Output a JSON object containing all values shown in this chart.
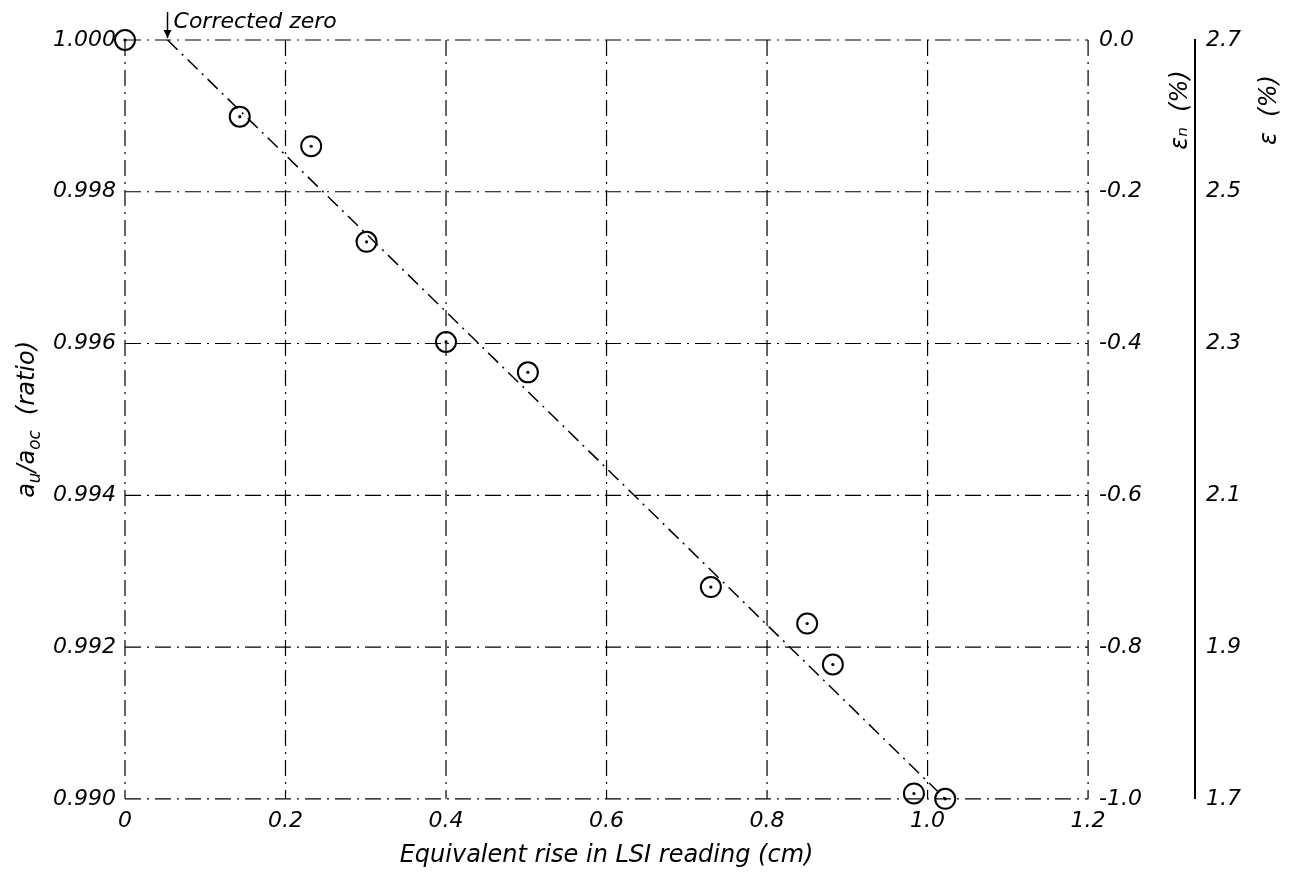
{
  "chart_data": {
    "type": "scatter",
    "xlabel": "Equivalent rise in LSI reading (cm)",
    "ylabel": "a$_{u}$/a$_{oc}$  (ratio)",
    "y2label": "εₙ  (%)",
    "y3label": "ε  (%)",
    "series": [
      {
        "color": "#000000",
        "marker": "circle",
        "x": [
          0,
          0.143,
          0.232,
          0.301,
          0.4,
          0.502,
          0.73,
          0.85,
          0.882,
          0.983,
          1.022
        ],
        "values": [
          1.0,
          0.99899,
          0.9986,
          0.99734,
          0.99602,
          0.99562,
          0.99279,
          0.99231,
          0.99177,
          0.99007,
          0.99
        ]
      },
      {
        "type": "line",
        "color": "#000000",
        "marker": "none",
        "line_style": "dashed",
        "x": [
          0.053,
          1.022
        ],
        "values": [
          1.0,
          0.99
        ]
      }
    ],
    "xlim": [
      0,
      1.2
    ],
    "xticks": [
      0,
      0.2,
      0.4,
      0.6,
      0.8,
      {
        "value": 1,
        "label": "1.0"
      },
      1.2
    ],
    "ylim": [
      0.99,
      1.0
    ],
    "yticks": [
      {
        "value": 0.99,
        "label": "0.990"
      },
      0.992,
      0.994,
      0.996,
      0.998,
      {
        "value": 1.0,
        "label": "1.000"
      }
    ],
    "y2lim": [
      -1.0,
      0.0
    ],
    "y2ticks": [
      {
        "value": -1.0,
        "label": "-1.0"
      },
      -0.8,
      -0.6,
      -0.4,
      -0.2,
      {
        "value": 0,
        "label": "0.0"
      }
    ],
    "y3lim": [
      1.7,
      2.7
    ],
    "y3ticks": [
      1.7,
      1.9,
      2.1,
      2.3,
      2.5,
      2.7
    ],
    "grid": true,
    "legend": false,
    "annotations": [
      {
        "text": "Corrected zero",
        "x": 0.053,
        "y": 1.0
      }
    ]
  }
}
